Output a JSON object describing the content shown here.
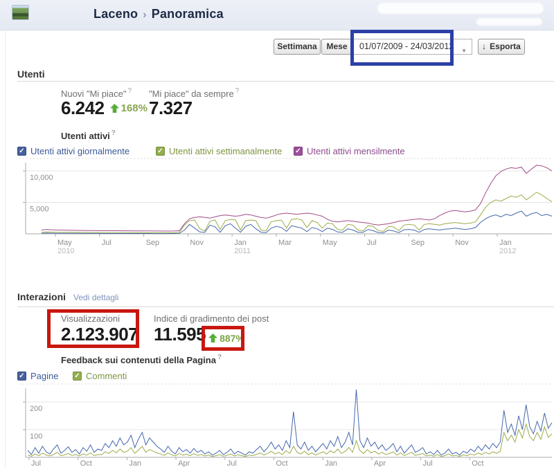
{
  "header": {
    "page_name": "Laceno",
    "separator": "›",
    "section_name": "Panoramica"
  },
  "controls": {
    "week_label": "Settimana",
    "month_label": "Mese",
    "date_range": "01/07/2009 - 24/03/2012",
    "dropdown_icon": "▼",
    "export_label": "Esporta",
    "export_icon": "↓"
  },
  "users_section": {
    "heading": "Utenti",
    "stats": [
      {
        "label": "Nuovi \"Mi piace\"",
        "help": "?",
        "value": "6.242",
        "delta": "168%",
        "delta_dir": "up"
      },
      {
        "label": "\"Mi piace\" da sempre",
        "help": "?",
        "value": "7.327"
      }
    ],
    "subheading": "Utenti attivi",
    "subheading_help": "?",
    "legend": [
      {
        "label": "Utenti attivi giornalmente",
        "box": "#46619c",
        "border": "#2f4a85",
        "text": "#3b5998"
      },
      {
        "label": "Utenti attivi settimanalmente",
        "box": "#93ad4f",
        "border": "#74903a",
        "text": "#7e9440"
      },
      {
        "label": "Utenti attivi mensilmente",
        "box": "#9c4f9c",
        "border": "#7d3b7d",
        "text": "#8c4a8c"
      }
    ]
  },
  "interactions_section": {
    "heading": "Interazioni",
    "details_link": "Vedi dettagli",
    "stats": [
      {
        "label": "Visualizzazioni",
        "value": "2.123.907"
      },
      {
        "label": "Indice di gradimento dei post",
        "value": "11.595",
        "delta": "887%",
        "delta_dir": "up"
      }
    ],
    "subheading": "Feedback sui contenuti della Pagina",
    "subheading_help": "?",
    "legend": [
      {
        "label": "Pagine",
        "box": "#46619c",
        "border": "#2f4a85",
        "text": "#3b5998"
      },
      {
        "label": "Commenti",
        "box": "#93ad4f",
        "border": "#74903a",
        "text": "#7e9440"
      }
    ]
  },
  "annotations": {
    "date_highlight_color": "#2c3fa7",
    "views_highlight_color": "#c9170f",
    "delta_highlight_color": "#c9170f"
  },
  "chart_data": [
    {
      "type": "line",
      "title": "Utenti attivi",
      "x_range": "Apr 2010 - Mar 2012 (weekly samples)",
      "ylim": [
        0,
        12000
      ],
      "grid": true,
      "y_gridlines": [
        {
          "value": 5000,
          "label": "5,000"
        },
        {
          "value": 10000,
          "label": "10,000"
        }
      ],
      "x_ticks": [
        {
          "label": "May",
          "year": "2010"
        },
        {
          "label": "Jul"
        },
        {
          "label": "Sep"
        },
        {
          "label": "Nov"
        },
        {
          "label": "Jan",
          "year": "2011"
        },
        {
          "label": "Mar"
        },
        {
          "label": "May"
        },
        {
          "label": "Jul"
        },
        {
          "label": "Sep"
        },
        {
          "label": "Nov"
        },
        {
          "label": "Jan",
          "year": "2012"
        }
      ],
      "series": [
        {
          "name": "Utenti attivi settimanalmente",
          "color": "#9cab48",
          "values": [
            250,
            300,
            280,
            260,
            250,
            240,
            230,
            230,
            220,
            220,
            210,
            210,
            200,
            200,
            200,
            190,
            190,
            190,
            180,
            180,
            180,
            170,
            170,
            170,
            160,
            160,
            170,
            250,
            1400,
            2100,
            2200,
            800,
            500,
            2000,
            2200,
            700,
            2100,
            2300,
            2200,
            600,
            2100,
            2200,
            2100,
            600,
            500,
            1900,
            2100,
            2200,
            900,
            2300,
            2400,
            2200,
            1000,
            2100,
            1800,
            900,
            1700,
            1600,
            700,
            600,
            1500,
            1400,
            600,
            500,
            1300,
            1200,
            500,
            400,
            1200,
            1100,
            500,
            1400,
            1500,
            1400,
            600,
            1500,
            1600,
            1500,
            1400,
            1600,
            1700,
            1800,
            1700,
            1600,
            1700,
            1900,
            3000,
            4200,
            5000,
            5400,
            5200,
            5600,
            6000,
            5800,
            6200,
            5400,
            6000,
            6600,
            6200,
            5600,
            5100
          ]
        },
        {
          "name": "Utenti attivi mensilmente",
          "color": "#a04a87",
          "values": [
            600,
            700,
            650,
            620,
            600,
            580,
            560,
            550,
            540,
            530,
            520,
            510,
            500,
            500,
            490,
            490,
            480,
            480,
            470,
            470,
            460,
            460,
            450,
            450,
            440,
            440,
            450,
            500,
            1600,
            2400,
            2600,
            2700,
            2600,
            2500,
            2700,
            2900,
            3000,
            2900,
            2800,
            2900,
            3100,
            3000,
            2800,
            2600,
            2500,
            2700,
            3000,
            3200,
            3300,
            3200,
            3100,
            3200,
            3300,
            3200,
            3000,
            2800,
            2300,
            2000,
            1900,
            2000,
            2100,
            2000,
            1900,
            1800,
            1700,
            1500,
            1400,
            1500,
            1600,
            1800,
            2000,
            2100,
            2200,
            2300,
            2400,
            2300,
            2200,
            2400,
            2900,
            3300,
            3600,
            3700,
            3600,
            3500,
            3600,
            3800,
            4800,
            6500,
            8000,
            9200,
            9900,
            10300,
            10500,
            10400,
            10600,
            9600,
            10300,
            10900,
            10800,
            10500,
            10000
          ]
        },
        {
          "name": "Utenti attivi giornalmente",
          "color": "#4467ad",
          "values": [
            80,
            120,
            100,
            90,
            85,
            80,
            75,
            75,
            70,
            70,
            65,
            65,
            60,
            60,
            60,
            55,
            55,
            55,
            50,
            50,
            50,
            50,
            45,
            45,
            45,
            45,
            50,
            80,
            600,
            1500,
            900,
            300,
            250,
            1400,
            1100,
            250,
            1300,
            1600,
            900,
            250,
            1200,
            1500,
            800,
            250,
            200,
            900,
            1200,
            1000,
            400,
            1300,
            1100,
            900,
            350,
            1000,
            800,
            350,
            900,
            700,
            300,
            250,
            800,
            600,
            250,
            250,
            700,
            500,
            200,
            180,
            600,
            450,
            200,
            650,
            700,
            600,
            250,
            700,
            800,
            700,
            600,
            750,
            800,
            900,
            800,
            700,
            800,
            1000,
            1800,
            2400,
            2800,
            3000,
            2700,
            3100,
            2900,
            3300,
            3600,
            2800,
            3200,
            3400,
            2900,
            3100,
            2800
          ]
        }
      ]
    },
    {
      "type": "line",
      "title": "Feedback sui contenuti della Pagina",
      "x_range": "Jul 2009 - Mar 2012 (weekly samples)",
      "ylim": [
        0,
        280
      ],
      "grid": true,
      "y_gridlines": [
        {
          "value": 100,
          "label": "100"
        },
        {
          "value": 200,
          "label": "200"
        }
      ],
      "x_ticks": [
        {
          "label": "Jul"
        },
        {
          "label": "Oct"
        },
        {
          "label": "Jan"
        },
        {
          "label": "Apr"
        },
        {
          "label": "Jul"
        },
        {
          "label": "Oct"
        },
        {
          "label": "Jan"
        },
        {
          "label": "Apr"
        },
        {
          "label": "Jul"
        },
        {
          "label": "Oct"
        }
      ],
      "series": [
        {
          "name": "Commenti",
          "color": "#9cab48",
          "values": [
            8,
            4,
            12,
            6,
            15,
            8,
            5,
            10,
            18,
            6,
            9,
            14,
            7,
            10,
            5,
            12,
            8,
            16,
            6,
            10,
            9,
            20,
            14,
            25,
            16,
            30,
            18,
            22,
            35,
            14,
            26,
            40,
            18,
            28,
            22,
            16,
            12,
            7,
            16,
            9,
            5,
            14,
            8,
            11,
            6,
            13,
            7,
            10,
            5,
            8,
            3,
            6,
            10,
            4,
            7,
            12,
            5,
            9,
            6,
            3,
            8,
            6,
            11,
            16,
            8,
            14,
            22,
            12,
            18,
            10,
            24,
            14,
            40,
            18,
            12,
            22,
            10,
            16,
            8,
            14,
            20,
            12,
            24,
            16,
            30,
            14,
            22,
            36,
            18,
            60,
            24,
            14,
            28,
            16,
            22,
            12,
            18,
            10,
            14,
            20,
            8,
            16,
            6,
            12,
            18,
            7,
            10,
            14,
            5,
            8,
            4,
            10,
            3,
            6,
            12,
            5,
            7,
            3,
            9,
            6,
            12,
            8,
            16,
            10,
            18,
            12,
            20,
            14,
            22,
            90,
            60,
            80,
            55,
            100,
            70,
            120,
            75,
            60,
            90,
            65,
            110,
            72,
            85
          ]
        },
        {
          "name": "Pagine",
          "color": "#4467ad",
          "values": [
            25,
            10,
            35,
            15,
            40,
            20,
            12,
            30,
            45,
            15,
            25,
            38,
            18,
            28,
            12,
            35,
            22,
            45,
            18,
            30,
            25,
            50,
            35,
            60,
            40,
            70,
            45,
            55,
            80,
            35,
            65,
            90,
            45,
            70,
            55,
            40,
            30,
            18,
            40,
            22,
            12,
            35,
            20,
            28,
            15,
            32,
            18,
            25,
            12,
            20,
            8,
            15,
            25,
            10,
            18,
            30,
            12,
            22,
            15,
            8,
            20,
            15,
            28,
            40,
            20,
            35,
            55,
            30,
            45,
            25,
            60,
            35,
            165,
            45,
            30,
            55,
            25,
            40,
            20,
            35,
            50,
            30,
            60,
            40,
            75,
            35,
            55,
            90,
            45,
            245,
            60,
            35,
            70,
            40,
            55,
            30,
            45,
            25,
            35,
            50,
            20,
            40,
            15,
            30,
            45,
            18,
            25,
            35,
            12,
            20,
            10,
            25,
            8,
            15,
            30,
            12,
            18,
            8,
            22,
            15,
            30,
            20,
            40,
            25,
            45,
            30,
            50,
            35,
            55,
            170,
            90,
            120,
            80,
            150,
            100,
            190,
            110,
            85,
            130,
            95,
            160,
            105,
            125
          ]
        }
      ]
    }
  ]
}
